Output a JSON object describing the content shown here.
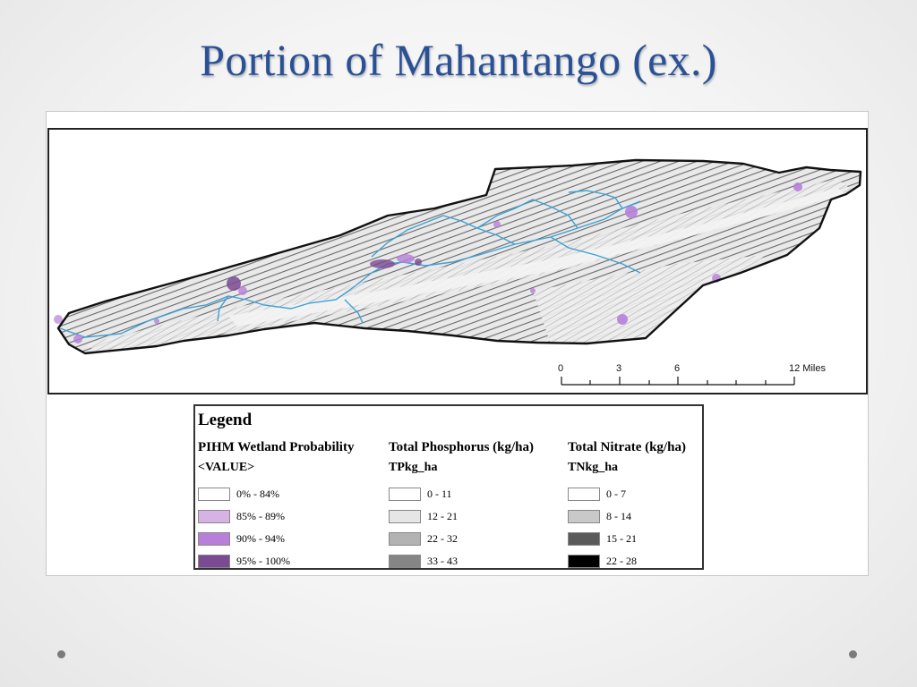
{
  "slide": {
    "title": "Portion of Mahantango (ex.)"
  },
  "map": {
    "scale_bar": {
      "ticks": [
        "0",
        "3",
        "6",
        "12 Miles"
      ]
    },
    "colors": {
      "stream": "#3aa2d8",
      "boundary": "#111111",
      "wetland_high": "#8a4fb8"
    }
  },
  "legend": {
    "title": "Legend",
    "groups": [
      {
        "heading": "PIHM Wetland Probability",
        "field": "<VALUE>",
        "classes": [
          {
            "label": "0% - 84%",
            "color": "#ffffff"
          },
          {
            "label": "85% - 89%",
            "color": "#d7b2e4"
          },
          {
            "label": "90% - 94%",
            "color": "#b77fd9"
          },
          {
            "label": "95% - 100%",
            "color": "#7a4a92"
          }
        ]
      },
      {
        "heading": "Total Phosphorus (kg/ha)",
        "field": "TPkg_ha",
        "classes": [
          {
            "label": "0 - 11",
            "color": "#ffffff"
          },
          {
            "label": "12 - 21",
            "color": "#e6e6e6"
          },
          {
            "label": "22 - 32",
            "color": "#b3b3b3"
          },
          {
            "label": "33 - 43",
            "color": "#858585"
          }
        ]
      },
      {
        "heading": "Total Nitrate (kg/ha)",
        "field": "TNkg_ha",
        "classes": [
          {
            "label": "0 - 7",
            "color": "#ffffff"
          },
          {
            "label": "8 - 14",
            "color": "#c9c9c9"
          },
          {
            "label": "15 - 21",
            "color": "#5a5a5a"
          },
          {
            "label": "22 - 28",
            "color": "#000000"
          }
        ]
      }
    ]
  }
}
